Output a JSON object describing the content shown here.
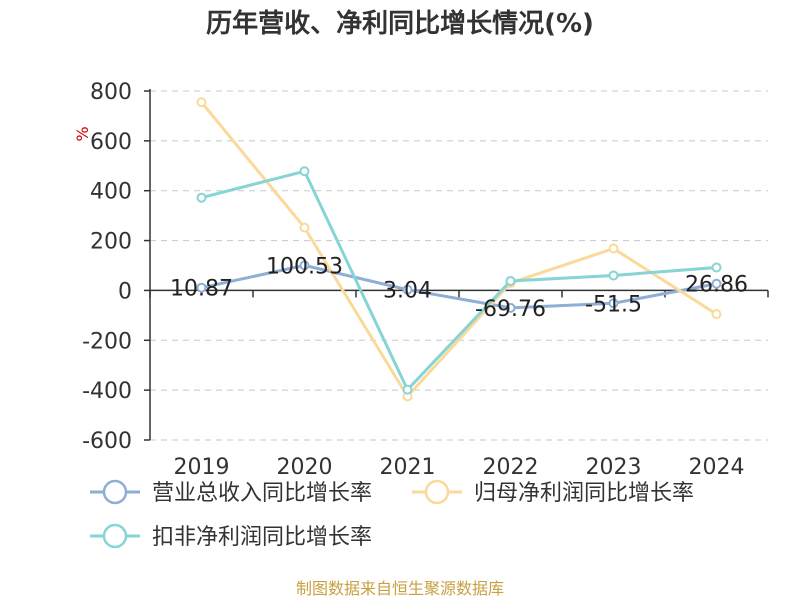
{
  "chart_data": {
    "type": "line",
    "title": "历年营收、净利同比增长情况(%)",
    "ylabel": "%",
    "categories": [
      "2019",
      "2020",
      "2021",
      "2022",
      "2023",
      "2024"
    ],
    "ylim": [
      -600,
      800
    ],
    "yticks": [
      800,
      600,
      400,
      200,
      0,
      -200,
      -400,
      -600
    ],
    "grid": true,
    "legend_position": "bottom",
    "series": [
      {
        "name": "营业总收入同比增长率",
        "color": "#8eaed6",
        "values": [
          10.87,
          100.53,
          3.04,
          -69.76,
          -51.5,
          26.86
        ],
        "labels": [
          "10.87",
          "100.53",
          "3.04",
          "-69.76",
          "-51.5",
          "26.86"
        ]
      },
      {
        "name": "归母净利润同比增长率",
        "color": "#fbd99a",
        "values": [
          755,
          252,
          -425,
          30,
          168,
          -95
        ]
      },
      {
        "name": "扣非净利润同比增长率",
        "color": "#86d4d4",
        "values": [
          372,
          478,
          -398,
          38,
          60,
          92
        ]
      }
    ]
  },
  "source": "制图数据来自恒生聚源数据库"
}
